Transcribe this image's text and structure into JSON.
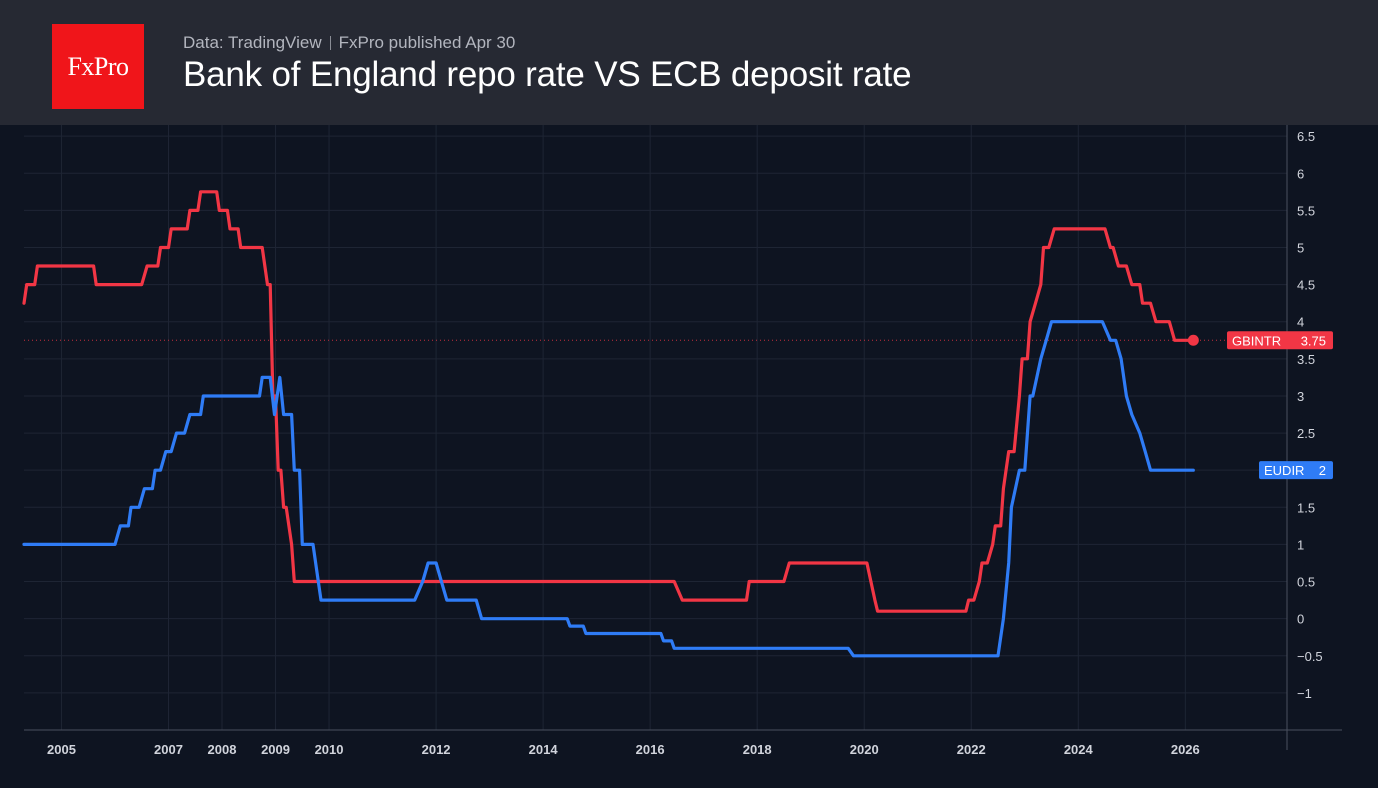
{
  "header": {
    "logo_text": "FxPro",
    "source": "Data: TradingView",
    "published": "FxPro published Apr 30",
    "title": "Bank of England repo rate VS ECB deposit rate"
  },
  "colors": {
    "header_bg": "#262933",
    "logo_bg": "#f0151a",
    "chart_bg": "#0e1421",
    "grid": "#1e2534",
    "gbintr": "#f23645",
    "eudir": "#2f7cf6"
  },
  "chart_data": {
    "type": "line",
    "title": "Bank of England repo rate VS ECB deposit rate",
    "xlabel": "",
    "ylabel": "",
    "xlim": [
      2004.3,
      2027.9
    ],
    "ylim": [
      -1.5,
      6.65
    ],
    "y_ticks": [
      6.5,
      6,
      5.5,
      5,
      4.5,
      4,
      3.5,
      3,
      2.5,
      2,
      1.5,
      1,
      0.5,
      0,
      -0.5,
      -1
    ],
    "y_tick_labels": [
      "6.5",
      "6",
      "5.5",
      "5",
      "4.5",
      "4",
      "3.5",
      "3",
      "2.5",
      "2",
      "1.5",
      "1",
      "0.5",
      "0",
      "−0.5",
      "−1"
    ],
    "x_ticks": [
      2005,
      2007,
      2008,
      2009,
      2010,
      2012,
      2014,
      2016,
      2018,
      2020,
      2022,
      2024,
      2026
    ],
    "x_tick_labels": [
      "2005",
      "2007",
      "2008",
      "2009",
      "2010",
      "2012",
      "2014",
      "2016",
      "2018",
      "2020",
      "2022",
      "2024",
      "2026"
    ],
    "legend": "right-axis price tags",
    "series": [
      {
        "name": "GBINTR",
        "last_value_label": "3.75",
        "last_value": 3.75,
        "points": [
          [
            2004.3,
            4.25
          ],
          [
            2004.35,
            4.5
          ],
          [
            2004.5,
            4.5
          ],
          [
            2004.55,
            4.75
          ],
          [
            2005.6,
            4.75
          ],
          [
            2005.65,
            4.5
          ],
          [
            2006.5,
            4.5
          ],
          [
            2006.6,
            4.75
          ],
          [
            2006.8,
            4.75
          ],
          [
            2006.85,
            5.0
          ],
          [
            2007.0,
            5.0
          ],
          [
            2007.05,
            5.25
          ],
          [
            2007.35,
            5.25
          ],
          [
            2007.4,
            5.5
          ],
          [
            2007.55,
            5.5
          ],
          [
            2007.6,
            5.75
          ],
          [
            2007.9,
            5.75
          ],
          [
            2007.95,
            5.5
          ],
          [
            2008.1,
            5.5
          ],
          [
            2008.15,
            5.25
          ],
          [
            2008.3,
            5.25
          ],
          [
            2008.35,
            5.0
          ],
          [
            2008.75,
            5.0
          ],
          [
            2008.85,
            4.5
          ],
          [
            2008.9,
            4.5
          ],
          [
            2008.95,
            3.0
          ],
          [
            2009.0,
            3.0
          ],
          [
            2009.05,
            2.0
          ],
          [
            2009.1,
            2.0
          ],
          [
            2009.15,
            1.5
          ],
          [
            2009.2,
            1.5
          ],
          [
            2009.3,
            1.0
          ],
          [
            2009.35,
            0.5
          ],
          [
            2016.45,
            0.5
          ],
          [
            2016.6,
            0.25
          ],
          [
            2017.8,
            0.25
          ],
          [
            2017.85,
            0.5
          ],
          [
            2018.5,
            0.5
          ],
          [
            2018.6,
            0.75
          ],
          [
            2020.05,
            0.75
          ],
          [
            2020.2,
            0.25
          ],
          [
            2020.25,
            0.1
          ],
          [
            2021.9,
            0.1
          ],
          [
            2021.95,
            0.25
          ],
          [
            2022.05,
            0.25
          ],
          [
            2022.15,
            0.5
          ],
          [
            2022.2,
            0.75
          ],
          [
            2022.3,
            0.75
          ],
          [
            2022.4,
            1.0
          ],
          [
            2022.45,
            1.25
          ],
          [
            2022.55,
            1.25
          ],
          [
            2022.6,
            1.75
          ],
          [
            2022.7,
            2.25
          ],
          [
            2022.8,
            2.25
          ],
          [
            2022.9,
            3.0
          ],
          [
            2022.95,
            3.5
          ],
          [
            2023.05,
            3.5
          ],
          [
            2023.1,
            4.0
          ],
          [
            2023.2,
            4.25
          ],
          [
            2023.3,
            4.5
          ],
          [
            2023.35,
            5.0
          ],
          [
            2023.45,
            5.0
          ],
          [
            2023.55,
            5.25
          ],
          [
            2024.5,
            5.25
          ],
          [
            2024.6,
            5.0
          ],
          [
            2024.65,
            5.0
          ],
          [
            2024.75,
            4.75
          ],
          [
            2024.9,
            4.75
          ],
          [
            2025.0,
            4.5
          ],
          [
            2025.15,
            4.5
          ],
          [
            2025.2,
            4.25
          ],
          [
            2025.35,
            4.25
          ],
          [
            2025.45,
            4.0
          ],
          [
            2025.7,
            4.0
          ],
          [
            2025.8,
            3.75
          ],
          [
            2026.15,
            3.75
          ]
        ]
      },
      {
        "name": "EUDIR",
        "last_value_label": "2",
        "last_value": 2.0,
        "points": [
          [
            2004.3,
            1.0
          ],
          [
            2006.0,
            1.0
          ],
          [
            2006.1,
            1.25
          ],
          [
            2006.25,
            1.25
          ],
          [
            2006.3,
            1.5
          ],
          [
            2006.45,
            1.5
          ],
          [
            2006.55,
            1.75
          ],
          [
            2006.7,
            1.75
          ],
          [
            2006.75,
            2.0
          ],
          [
            2006.85,
            2.0
          ],
          [
            2006.95,
            2.25
          ],
          [
            2007.05,
            2.25
          ],
          [
            2007.15,
            2.5
          ],
          [
            2007.3,
            2.5
          ],
          [
            2007.4,
            2.75
          ],
          [
            2007.6,
            2.75
          ],
          [
            2007.65,
            3.0
          ],
          [
            2008.7,
            3.0
          ],
          [
            2008.75,
            3.25
          ],
          [
            2008.9,
            3.25
          ],
          [
            2008.98,
            2.75
          ],
          [
            2009.08,
            3.25
          ],
          [
            2009.15,
            2.75
          ],
          [
            2009.3,
            2.75
          ],
          [
            2009.35,
            2.0
          ],
          [
            2009.45,
            2.0
          ],
          [
            2009.5,
            1.0
          ],
          [
            2009.7,
            1.0
          ],
          [
            2009.8,
            0.5
          ],
          [
            2009.85,
            0.25
          ],
          [
            2011.6,
            0.25
          ],
          [
            2011.75,
            0.5
          ],
          [
            2011.85,
            0.75
          ],
          [
            2012.0,
            0.75
          ],
          [
            2012.1,
            0.5
          ],
          [
            2012.2,
            0.25
          ],
          [
            2012.75,
            0.25
          ],
          [
            2012.85,
            0.0
          ],
          [
            2014.45,
            0.0
          ],
          [
            2014.5,
            -0.1
          ],
          [
            2014.75,
            -0.1
          ],
          [
            2014.8,
            -0.2
          ],
          [
            2016.2,
            -0.2
          ],
          [
            2016.25,
            -0.3
          ],
          [
            2016.4,
            -0.3
          ],
          [
            2016.45,
            -0.4
          ],
          [
            2019.7,
            -0.4
          ],
          [
            2019.8,
            -0.5
          ],
          [
            2022.5,
            -0.5
          ],
          [
            2022.6,
            0.0
          ],
          [
            2022.7,
            0.75
          ],
          [
            2022.75,
            1.5
          ],
          [
            2022.9,
            2.0
          ],
          [
            2023.0,
            2.0
          ],
          [
            2023.1,
            3.0
          ],
          [
            2023.15,
            3.0
          ],
          [
            2023.3,
            3.5
          ],
          [
            2023.4,
            3.75
          ],
          [
            2023.5,
            4.0
          ],
          [
            2024.45,
            4.0
          ],
          [
            2024.6,
            3.75
          ],
          [
            2024.7,
            3.75
          ],
          [
            2024.8,
            3.5
          ],
          [
            2024.9,
            3.0
          ],
          [
            2025.0,
            2.75
          ],
          [
            2025.15,
            2.5
          ],
          [
            2025.25,
            2.25
          ],
          [
            2025.35,
            2.0
          ],
          [
            2026.15,
            2.0
          ]
        ]
      }
    ]
  }
}
